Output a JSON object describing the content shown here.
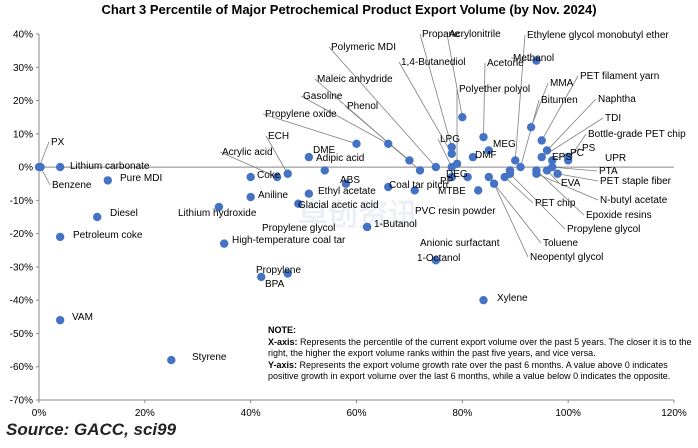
{
  "chart_data": {
    "type": "scatter",
    "title": "Chart 3 Percentile of Major Petrochemical Product Export Volume (by Nov. 2024)",
    "xlim": [
      0,
      120
    ],
    "ylim": [
      -70,
      40
    ],
    "xticks": [
      "0%",
      "20%",
      "40%",
      "60%",
      "80%",
      "100%",
      "120%"
    ],
    "yticks": [
      "40%",
      "30%",
      "20%",
      "10%",
      "0%",
      "-10%",
      "-20%",
      "-30%",
      "-40%",
      "-50%",
      "-60%",
      "-70%"
    ],
    "marker_color": "#4472C4",
    "points": [
      {
        "name": "PX",
        "x": 0,
        "y": 0
      },
      {
        "name": "Benzene",
        "x": 0.3,
        "y": 0
      },
      {
        "name": "Lithium carbonate",
        "x": 4,
        "y": 0
      },
      {
        "name": "Pure MDI",
        "x": 13,
        "y": -4
      },
      {
        "name": "Diesel",
        "x": 11,
        "y": -15
      },
      {
        "name": "Petroleum coke",
        "x": 4,
        "y": -21
      },
      {
        "name": "VAM",
        "x": 4,
        "y": -46
      },
      {
        "name": "Styrene",
        "x": 25,
        "y": -58
      },
      {
        "name": "Coke",
        "x": 40,
        "y": -3
      },
      {
        "name": "Aniline",
        "x": 40,
        "y": -9
      },
      {
        "name": "Lithium hydroxide",
        "x": 34,
        "y": -12
      },
      {
        "name": "High-temperature coal tar",
        "x": 35,
        "y": -23
      },
      {
        "name": "BPA",
        "x": 42,
        "y": -33
      },
      {
        "name": "Propylene",
        "x": 47,
        "y": -32
      },
      {
        "name": "ECH",
        "x": 47,
        "y": -2
      },
      {
        "name": "Acrylic acid",
        "x": 45,
        "y": -3
      },
      {
        "name": "DME",
        "x": 51,
        "y": 3
      },
      {
        "name": "Adipic acid",
        "x": 54,
        "y": -1
      },
      {
        "name": "Ethyl acetate",
        "x": 51,
        "y": -8
      },
      {
        "name": "Glacial acetic acid",
        "x": 49,
        "y": -11
      },
      {
        "name": "Propylene glycol",
        "x": 62,
        "y": -18
      },
      {
        "name": "1-Butanol",
        "x": 62,
        "y": -18
      },
      {
        "name": "ABS",
        "x": 58,
        "y": -5
      },
      {
        "name": "Coal tar pitch",
        "x": 66,
        "y": -6
      },
      {
        "name": "PVC resin powder",
        "x": 71,
        "y": -7
      },
      {
        "name": "Propylene oxide",
        "x": 60,
        "y": 7
      },
      {
        "name": "Gasoline",
        "x": 66,
        "y": 7
      },
      {
        "name": "Phenol",
        "x": 70,
        "y": 2
      },
      {
        "name": "Maleic anhydride",
        "x": 72,
        "y": -1
      },
      {
        "name": "Polymeric MDI",
        "x": 75,
        "y": 0
      },
      {
        "name": "LPG",
        "x": 78,
        "y": 0
      },
      {
        "name": "DEG",
        "x": 78,
        "y": -3
      },
      {
        "name": "Anionic surfactant",
        "x": 78,
        "y": -3
      },
      {
        "name": "1-Octanol",
        "x": 75,
        "y": -28
      },
      {
        "name": "Propane",
        "x": 78,
        "y": 6
      },
      {
        "name": "1,4-Butanediol",
        "x": 78,
        "y": 4
      },
      {
        "name": "Acrylonitrile",
        "x": 80,
        "y": 15
      },
      {
        "name": "Polyether polyol",
        "x": 79,
        "y": 1
      },
      {
        "name": "DMF",
        "x": 82,
        "y": 3
      },
      {
        "name": "PP",
        "x": 81,
        "y": -3
      },
      {
        "name": "MTBE",
        "x": 83,
        "y": -7
      },
      {
        "name": "Acetone",
        "x": 84,
        "y": 9
      },
      {
        "name": "MEG",
        "x": 85,
        "y": 5
      },
      {
        "name": "Toluene",
        "x": 85,
        "y": -3
      },
      {
        "name": "Neopentyl glycol",
        "x": 86,
        "y": -5
      },
      {
        "name": "Xylene",
        "x": 84,
        "y": -40
      },
      {
        "name": "Ethylene glycol monobutyl ether",
        "x": 90,
        "y": 2
      },
      {
        "name": "Methanol",
        "x": 94,
        "y": 32
      },
      {
        "name": "MMA",
        "x": 93,
        "y": 12
      },
      {
        "name": "Bitumen",
        "x": 91,
        "y": 0
      },
      {
        "name": "EPS",
        "x": 89,
        "y": -1
      },
      {
        "name": "PET chip",
        "x": 88,
        "y": -3
      },
      {
        "name": "Propylene glycol",
        "x": 89,
        "y": -2
      },
      {
        "name": "Epoxide resins",
        "x": 94,
        "y": -1
      },
      {
        "name": "PET filament yarn",
        "x": 95,
        "y": 8
      },
      {
        "name": "Naphtha",
        "x": 96,
        "y": 5
      },
      {
        "name": "TDI",
        "x": 95,
        "y": 3
      },
      {
        "name": "PC",
        "x": 97,
        "y": 2
      },
      {
        "name": "PS",
        "x": 100,
        "y": 3
      },
      {
        "name": "Bottle-grade PET chip",
        "x": 100,
        "y": 2
      },
      {
        "name": "UPR",
        "x": 100,
        "y": 3
      },
      {
        "name": "PTA",
        "x": 97,
        "y": 0
      },
      {
        "name": "EVA",
        "x": 96,
        "y": -1
      },
      {
        "name": "PET staple fiber",
        "x": 98,
        "y": -2
      },
      {
        "name": "N-butyl acetate",
        "x": 94,
        "y": -2
      }
    ]
  },
  "note": {
    "heading": "NOTE:",
    "x_label": "X-axis:",
    "x_text": "Represents the percentile of the current export volume over the past 5 years. The closer it is to the right, the higher the export volume ranks within the past five years, and vice versa.",
    "y_label": "Y-axis:",
    "y_text": "Represents the export volume growth rate over the past 6 months. A value above 0 indicates positive growth in export volume over the last 6 months, while a value below 0 indicates the opposite."
  },
  "source": "Source: GACC, sci99",
  "watermark": "卓创资讯"
}
